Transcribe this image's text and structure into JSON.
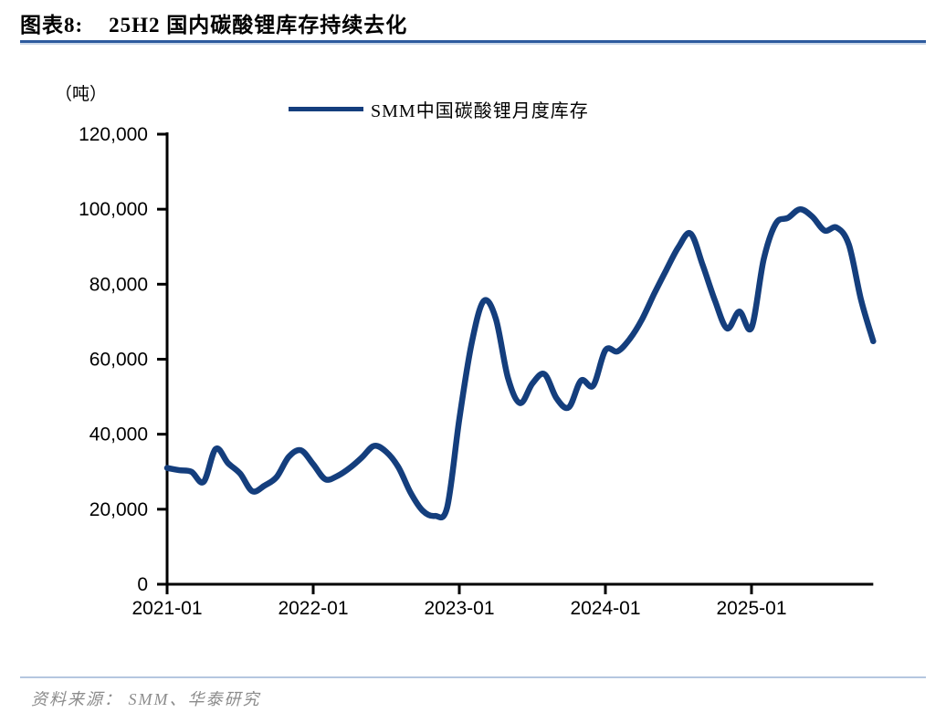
{
  "header": {
    "title_prefix": "图表8:",
    "title_text": "25H2 国内碳酸锂库存持续去化"
  },
  "chart": {
    "unit_label": "（吨）",
    "legend_label": "SMM中国碳酸锂月度库存"
  },
  "chart_data": {
    "type": "line",
    "title": "25H2 国内碳酸锂库存持续去化",
    "ylabel": "（吨）",
    "xlabel": "",
    "grid": false,
    "legend_position": "top",
    "legend_entries": [
      "SMM中国碳酸锂月度库存"
    ],
    "line_color": "#143e7d",
    "axis_color": "#000000",
    "ylim": [
      0,
      120000
    ],
    "ytick_values": [
      0,
      20000,
      40000,
      60000,
      80000,
      100000,
      120000
    ],
    "ytick_labels": [
      "0",
      "20,000",
      "40,000",
      "60,000",
      "80,000",
      "100,000",
      "120,000"
    ],
    "xtick_indices": [
      0,
      12,
      24,
      36,
      48
    ],
    "xtick_labels": [
      "2021-01",
      "2022-01",
      "2023-01",
      "2024-01",
      "2025-01"
    ],
    "x": [
      "2021-01",
      "2021-02",
      "2021-03",
      "2021-04",
      "2021-05",
      "2021-06",
      "2021-07",
      "2021-08",
      "2021-09",
      "2021-10",
      "2021-11",
      "2021-12",
      "2022-01",
      "2022-02",
      "2022-03",
      "2022-04",
      "2022-05",
      "2022-06",
      "2022-07",
      "2022-08",
      "2022-09",
      "2022-10",
      "2022-11",
      "2022-12",
      "2023-01",
      "2023-02",
      "2023-03",
      "2023-04",
      "2023-05",
      "2023-06",
      "2023-07",
      "2023-08",
      "2023-09",
      "2023-10",
      "2023-11",
      "2023-12",
      "2024-01",
      "2024-02",
      "2024-03",
      "2024-04",
      "2024-05",
      "2024-06",
      "2024-07",
      "2024-08",
      "2024-09",
      "2024-10",
      "2024-11",
      "2024-12",
      "2025-01",
      "2025-02",
      "2025-03",
      "2025-04",
      "2025-05",
      "2025-06",
      "2025-07",
      "2025-08",
      "2025-09",
      "2025-10",
      "2025-11"
    ],
    "series": [
      {
        "name": "SMM中国碳酸锂月度库存",
        "values": [
          31000,
          30400,
          30000,
          27300,
          36100,
          32300,
          29500,
          24800,
          26300,
          28600,
          34000,
          35700,
          32000,
          28000,
          28900,
          31000,
          33800,
          36900,
          35300,
          31200,
          24400,
          19600,
          18200,
          20500,
          44000,
          64000,
          75500,
          70800,
          55000,
          48300,
          53500,
          56000,
          49500,
          47200,
          54300,
          53000,
          62400,
          62100,
          65400,
          70600,
          77400,
          83800,
          89900,
          93500,
          85000,
          75600,
          68200,
          72700,
          68400,
          86600,
          96200,
          97700,
          100000,
          98000,
          94300,
          95100,
          90500,
          75800,
          64800
        ]
      }
    ]
  },
  "footer": {
    "source_text": "资料来源： SMM、华泰研究"
  }
}
